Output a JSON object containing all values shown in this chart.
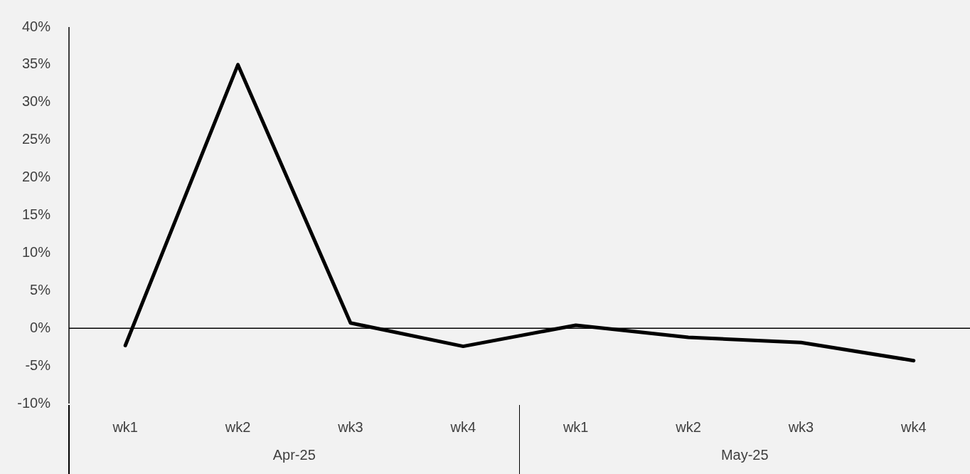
{
  "chart_data": {
    "type": "line",
    "categories": [
      "wk1",
      "wk2",
      "wk3",
      "wk4",
      "wk1",
      "wk2",
      "wk3",
      "wk4"
    ],
    "series": [
      {
        "color": "#000000",
        "values": [
          -2.3,
          35,
          0.7,
          -2.4,
          0.4,
          -1.2,
          -1.9,
          -4.3
        ]
      }
    ],
    "ylim": [
      -10,
      40
    ],
    "yticks": [
      {
        "value": -10,
        "label": "-10%"
      },
      {
        "value": -5,
        "label": "-5%"
      },
      {
        "value": 0,
        "label": "0%"
      },
      {
        "value": 5,
        "label": "5%"
      },
      {
        "value": 10,
        "label": "10%"
      },
      {
        "value": 15,
        "label": "15%"
      },
      {
        "value": 20,
        "label": "20%"
      },
      {
        "value": 25,
        "label": "25%"
      },
      {
        "value": 30,
        "label": "30%"
      },
      {
        "value": 35,
        "label": "35%"
      },
      {
        "value": 40,
        "label": "40%"
      }
    ],
    "ref_lines": [
      {
        "axis": "y",
        "value": 0,
        "color": "#000000"
      }
    ],
    "annotations": [
      "Apr-25",
      "May-25"
    ],
    "grid": false,
    "legend": false,
    "marker": "none",
    "line_style": "solid"
  }
}
